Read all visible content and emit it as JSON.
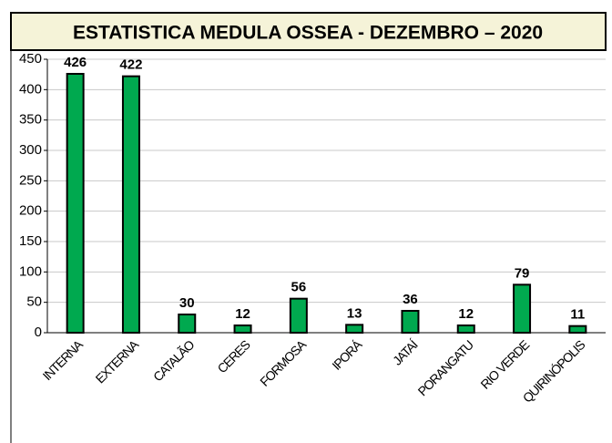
{
  "chart_data": {
    "type": "bar",
    "title": "ESTATISTICA MEDULA OSSEA - DEZEMBRO – 2020",
    "categories": [
      "INTERNA",
      "EXTERNA",
      "CATALÃO",
      "CERES",
      "FORMOSA",
      "IPORÁ",
      "JATAÍ",
      "PORANGATU",
      "RIO VERDE",
      "QUIRINÓPOLIS"
    ],
    "values": [
      426,
      422,
      30,
      12,
      56,
      13,
      36,
      12,
      79,
      11
    ],
    "color": "#00a94f",
    "ylim": [
      0,
      450
    ],
    "yticks": [
      0,
      50,
      100,
      150,
      200,
      250,
      300,
      350,
      400,
      450
    ],
    "grid": true
  }
}
